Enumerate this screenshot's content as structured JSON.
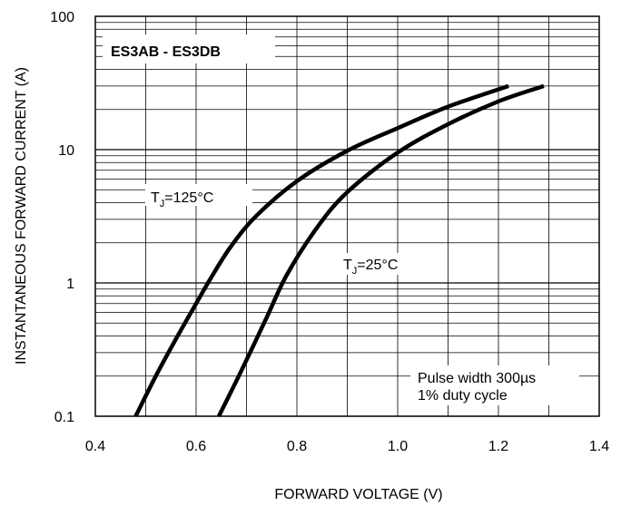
{
  "chart_data": {
    "type": "line",
    "title": "ES3AB - ES3DB",
    "xlabel": "FORWARD VOLTAGE (V)",
    "ylabel": "INSTANTANEOUS FORWARD CURRENT (A)",
    "xlim": [
      0.4,
      1.4
    ],
    "ylim": [
      0.1,
      100
    ],
    "yscale": "log",
    "grid": true,
    "x_ticks": [
      "0.4",
      "0.6",
      "0.8",
      "1.0",
      "1.2",
      "1.4"
    ],
    "y_ticks": [
      "0.1",
      "1",
      "10",
      "100"
    ],
    "series": [
      {
        "label_main": "T",
        "label_sub": "J",
        "label_rest": "=125°C",
        "x": [
          0.48,
          0.52,
          0.56,
          0.6,
          0.63,
          0.67,
          0.72,
          0.8,
          0.9,
          1.0,
          1.1,
          1.22
        ],
        "y": [
          0.1,
          0.2,
          0.38,
          0.7,
          1.1,
          1.9,
          3.2,
          5.8,
          9.8,
          14.5,
          21,
          30
        ]
      },
      {
        "label_main": "T",
        "label_sub": "J",
        "label_rest": "=25°C",
        "x": [
          0.645,
          0.69,
          0.74,
          0.78,
          0.84,
          0.9,
          1.0,
          1.1,
          1.2,
          1.29
        ],
        "y": [
          0.1,
          0.22,
          0.55,
          1.15,
          2.6,
          4.8,
          9.5,
          15.5,
          23,
          30
        ]
      }
    ],
    "annotations": [
      "Pulse width 300µs",
      "1% duty cycle"
    ]
  }
}
